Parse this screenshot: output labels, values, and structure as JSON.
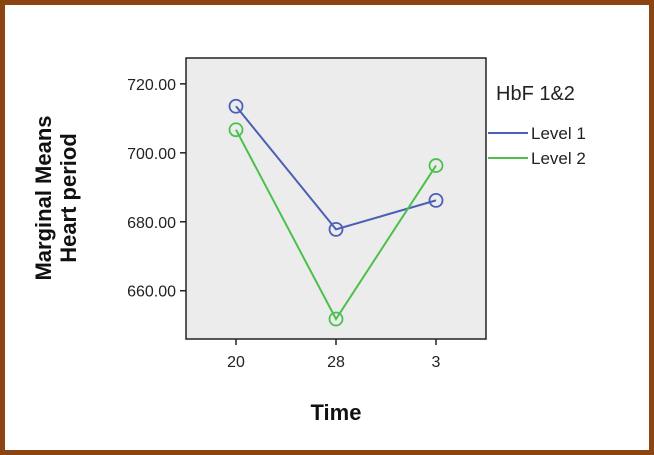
{
  "chart_data": {
    "type": "line",
    "title": "",
    "xlabel": "Time",
    "ylabel": "Marginal Means",
    "ylabel_line2": "Heart period",
    "categories": [
      "20",
      "28",
      "3"
    ],
    "yticks": [
      "720.00",
      "700.00",
      "680.00",
      "660.00"
    ],
    "ytick_values": [
      720,
      700,
      680,
      660
    ],
    "ylim": [
      646,
      727.5
    ],
    "grid": false,
    "legend_title": "HbF 1&2",
    "legend_position": "right",
    "series": [
      {
        "name": "Level 1",
        "values": [
          713.5,
          677.8,
          686.2
        ],
        "color": "#4a5fb5"
      },
      {
        "name": "Level 2",
        "values": [
          706.7,
          651.8,
          696.3
        ],
        "color": "#4cc04c"
      }
    ],
    "plot_background": "#ececec"
  }
}
